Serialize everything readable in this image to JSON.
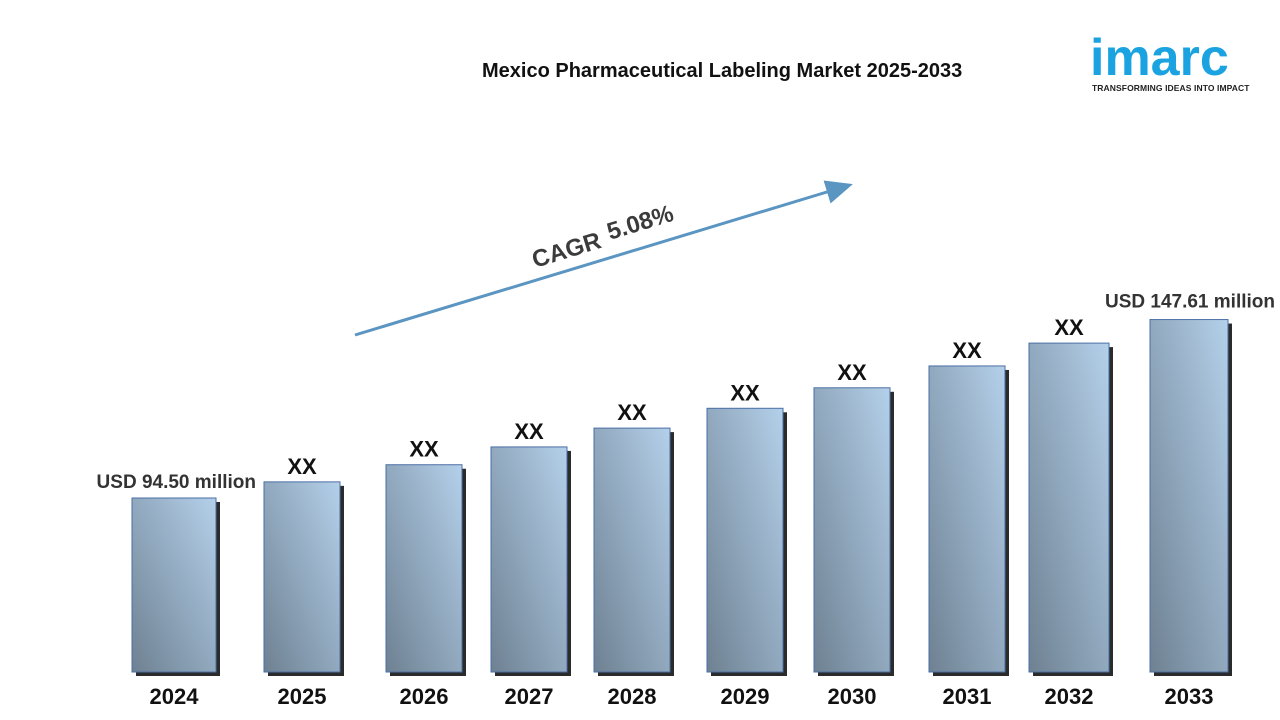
{
  "header": {
    "title": "Mexico Pharmaceutical Labeling Market 2025-2033"
  },
  "logo": {
    "word": "imarc",
    "tagline": "TRANSFORMING IDEAS INTO IMPACT",
    "color": "#1aa3e0"
  },
  "chart_data": {
    "type": "bar",
    "title": "Mexico Pharmaceutical Labeling Market 2025-2033",
    "xlabel": "",
    "ylabel": "",
    "categories": [
      "2024",
      "2025",
      "2026",
      "2027",
      "2028",
      "2029",
      "2030",
      "2031",
      "2032",
      "2033"
    ],
    "values": [
      94.5,
      99.3,
      104.4,
      109.7,
      115.3,
      121.2,
      127.3,
      133.8,
      140.6,
      147.61
    ],
    "value_labels": [
      "USD 94.50 million",
      "XX",
      "XX",
      "XX",
      "XX",
      "XX",
      "XX",
      "XX",
      "XX",
      "USD  147.61 million"
    ],
    "annotation": {
      "label": "CAGR",
      "value": "5.08%"
    },
    "unit": "USD million",
    "grid": false,
    "bar_color_light": "#b4d0ea",
    "bar_color_dark": "#6e8192",
    "arrow_color": "#5b95c2"
  }
}
